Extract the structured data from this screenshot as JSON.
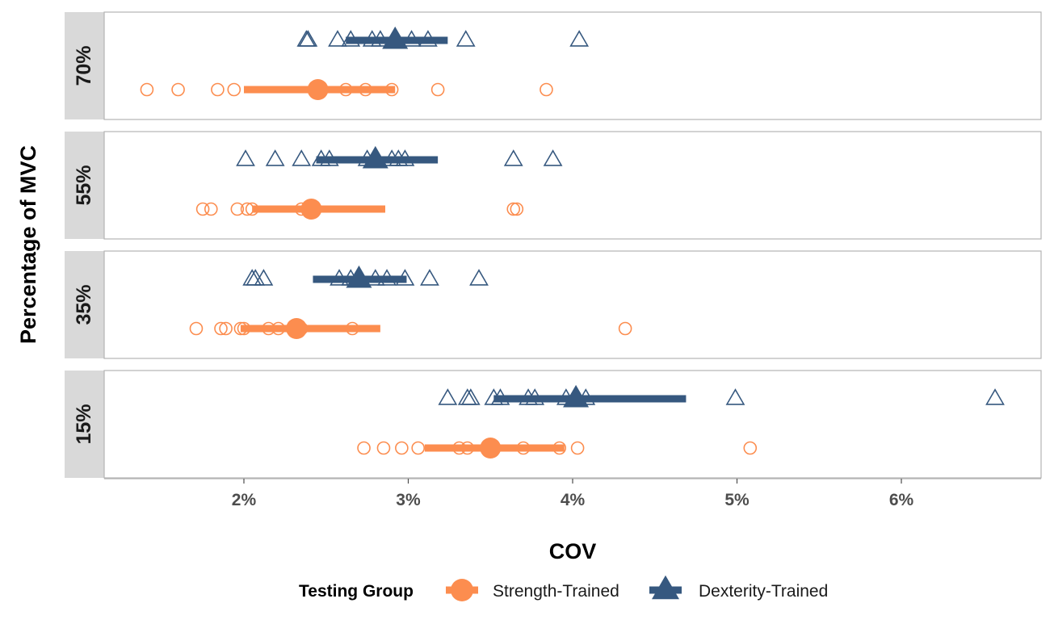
{
  "chart_data": {
    "type": "scatter",
    "xlabel": "COV",
    "ylabel": "Percentage of MVC",
    "x_ticks": [
      2,
      3,
      4,
      5,
      6
    ],
    "x_tick_labels": [
      "2%",
      "3%",
      "4%",
      "5%",
      "6%"
    ],
    "xlim": [
      1.15,
      6.85
    ],
    "grid": false,
    "legend_position": "bottom",
    "legend_title": "Testing Group",
    "series": [
      {
        "name": "Strength-Trained",
        "color": "#fc8d4f",
        "marker": "circle"
      },
      {
        "name": "Dexterity-Trained",
        "color": "#36587f",
        "marker": "triangle"
      }
    ],
    "panels": [
      {
        "label": "70%",
        "groups": [
          {
            "series": "Dexterity-Trained",
            "points": [
              2.38,
              2.39,
              2.57,
              2.65,
              2.78,
              2.83,
              2.91,
              3.02,
              3.12,
              3.35,
              4.04
            ],
            "mean": 2.92,
            "range": [
              2.62,
              3.24
            ]
          },
          {
            "series": "Strength-Trained",
            "points": [
              1.41,
              1.6,
              1.84,
              1.94,
              2.44,
              2.62,
              2.74,
              2.9,
              3.18,
              3.84
            ],
            "mean": 2.45,
            "range": [
              2.0,
              2.92
            ]
          }
        ]
      },
      {
        "label": "55%",
        "groups": [
          {
            "series": "Dexterity-Trained",
            "points": [
              2.01,
              2.19,
              2.35,
              2.47,
              2.52,
              2.75,
              2.9,
              2.94,
              2.98,
              3.64,
              3.88
            ],
            "mean": 2.8,
            "range": [
              2.44,
              3.18
            ]
          },
          {
            "series": "Strength-Trained",
            "points": [
              1.75,
              1.8,
              1.96,
              2.02,
              2.05,
              2.35,
              2.4,
              3.64,
              3.66
            ],
            "mean": 2.41,
            "range": [
              2.05,
              2.86
            ]
          }
        ]
      },
      {
        "label": "35%",
        "groups": [
          {
            "series": "Dexterity-Trained",
            "points": [
              2.05,
              2.07,
              2.12,
              2.58,
              2.65,
              2.8,
              2.87,
              2.98,
              3.13,
              3.43
            ],
            "mean": 2.7,
            "range": [
              2.42,
              2.99
            ]
          },
          {
            "series": "Strength-Trained",
            "points": [
              1.71,
              1.86,
              1.89,
              1.98,
              2.0,
              2.15,
              2.21,
              2.3,
              2.35,
              2.66,
              4.32
            ],
            "mean": 2.32,
            "range": [
              1.98,
              2.83
            ]
          }
        ]
      },
      {
        "label": "15%",
        "groups": [
          {
            "series": "Dexterity-Trained",
            "points": [
              3.24,
              3.36,
              3.38,
              3.52,
              3.56,
              3.73,
              3.77,
              3.96,
              4.08,
              4.99,
              6.57
            ],
            "mean": 4.02,
            "range": [
              3.52,
              4.69
            ]
          },
          {
            "series": "Strength-Trained",
            "points": [
              2.73,
              2.85,
              2.96,
              3.06,
              3.31,
              3.36,
              3.5,
              3.7,
              3.92,
              4.03,
              5.08
            ],
            "mean": 3.5,
            "range": [
              3.1,
              3.95
            ]
          }
        ]
      }
    ]
  }
}
